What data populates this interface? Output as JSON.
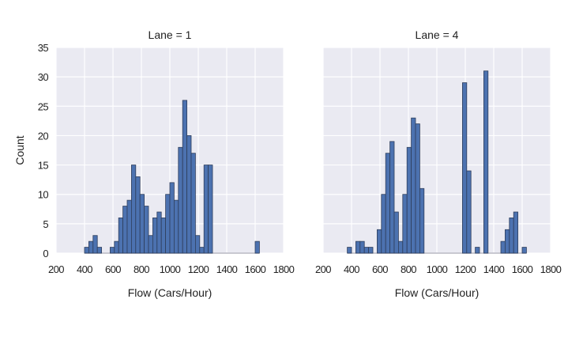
{
  "chart_data": [
    {
      "type": "bar",
      "title": "Lane = 1",
      "xlabel": "Flow (Cars/Hour)",
      "ylabel": "Count",
      "xlim": [
        200,
        1800
      ],
      "ylim": [
        0,
        35
      ],
      "xticks": [
        "200",
        "400",
        "600",
        "800",
        "1000",
        "1200",
        "1400",
        "1600",
        "1800"
      ],
      "yticks": [
        "0",
        "5",
        "10",
        "15",
        "20",
        "25",
        "30",
        "35"
      ],
      "grid": true,
      "bin_width": 30,
      "bins": [
        {
          "x0": 400,
          "count": 1
        },
        {
          "x0": 430,
          "count": 2
        },
        {
          "x0": 460,
          "count": 3
        },
        {
          "x0": 490,
          "count": 1
        },
        {
          "x0": 520,
          "count": 0
        },
        {
          "x0": 550,
          "count": 0
        },
        {
          "x0": 580,
          "count": 1
        },
        {
          "x0": 610,
          "count": 2
        },
        {
          "x0": 640,
          "count": 6
        },
        {
          "x0": 670,
          "count": 8
        },
        {
          "x0": 700,
          "count": 9
        },
        {
          "x0": 730,
          "count": 15
        },
        {
          "x0": 760,
          "count": 13
        },
        {
          "x0": 790,
          "count": 10
        },
        {
          "x0": 820,
          "count": 8
        },
        {
          "x0": 850,
          "count": 3
        },
        {
          "x0": 880,
          "count": 6
        },
        {
          "x0": 910,
          "count": 7
        },
        {
          "x0": 940,
          "count": 6
        },
        {
          "x0": 970,
          "count": 10
        },
        {
          "x0": 1000,
          "count": 12
        },
        {
          "x0": 1030,
          "count": 9
        },
        {
          "x0": 1060,
          "count": 18
        },
        {
          "x0": 1090,
          "count": 26
        },
        {
          "x0": 1120,
          "count": 20
        },
        {
          "x0": 1150,
          "count": 17
        },
        {
          "x0": 1180,
          "count": 3
        },
        {
          "x0": 1210,
          "count": 1
        },
        {
          "x0": 1240,
          "count": 15
        },
        {
          "x0": 1270,
          "count": 15
        },
        {
          "x0": 1600,
          "count": 2
        }
      ]
    },
    {
      "type": "bar",
      "title": "Lane = 4",
      "xlabel": "Flow (Cars/Hour)",
      "ylabel": "",
      "xlim": [
        200,
        1800
      ],
      "ylim": [
        0,
        35
      ],
      "xticks": [
        "200",
        "400",
        "600",
        "800",
        "1000",
        "1200",
        "1400",
        "1600",
        "1800"
      ],
      "yticks": [],
      "grid": true,
      "bin_width": 30,
      "bins": [
        {
          "x0": 370,
          "count": 1
        },
        {
          "x0": 430,
          "count": 2
        },
        {
          "x0": 460,
          "count": 2
        },
        {
          "x0": 490,
          "count": 1
        },
        {
          "x0": 520,
          "count": 1
        },
        {
          "x0": 580,
          "count": 4
        },
        {
          "x0": 610,
          "count": 10
        },
        {
          "x0": 640,
          "count": 17
        },
        {
          "x0": 670,
          "count": 19
        },
        {
          "x0": 700,
          "count": 7
        },
        {
          "x0": 730,
          "count": 2
        },
        {
          "x0": 760,
          "count": 10
        },
        {
          "x0": 790,
          "count": 18
        },
        {
          "x0": 820,
          "count": 23
        },
        {
          "x0": 850,
          "count": 22
        },
        {
          "x0": 880,
          "count": 11
        },
        {
          "x0": 1180,
          "count": 29
        },
        {
          "x0": 1210,
          "count": 14
        },
        {
          "x0": 1270,
          "count": 1
        },
        {
          "x0": 1330,
          "count": 31
        },
        {
          "x0": 1450,
          "count": 2
        },
        {
          "x0": 1480,
          "count": 4
        },
        {
          "x0": 1510,
          "count": 6
        },
        {
          "x0": 1540,
          "count": 7
        },
        {
          "x0": 1600,
          "count": 1
        }
      ]
    }
  ]
}
